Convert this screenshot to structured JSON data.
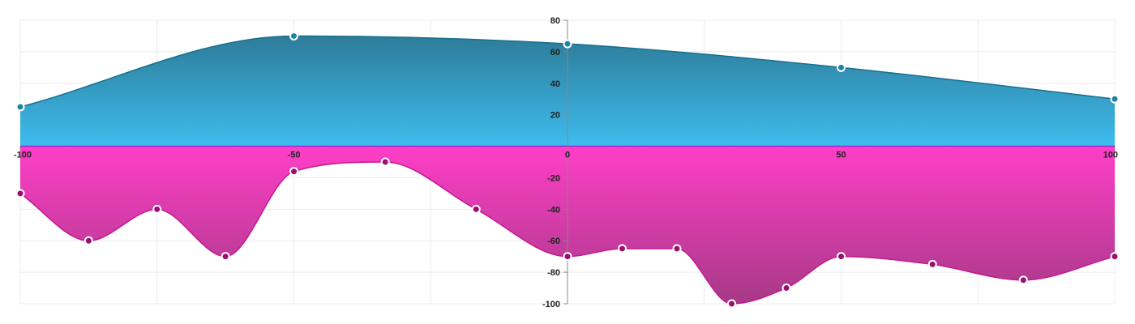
{
  "chart_data": {
    "type": "area",
    "xlim": [
      -100,
      100
    ],
    "ylim": [
      -100,
      80
    ],
    "x_ticks": [
      -100,
      -50,
      0,
      50,
      100
    ],
    "y_ticks": [
      80,
      60,
      40,
      20,
      -20,
      -40,
      -60,
      -80,
      -100
    ],
    "grid": true,
    "colors": {
      "positive_top": "#2d7c99",
      "positive_bottom": "#3ebcee",
      "positive_stroke": "#176f8c",
      "positive_marker": "#1a85a8",
      "negative_top": "#ff3ec8",
      "negative_bottom": "#a63a86",
      "negative_stroke": "#c4178f",
      "negative_marker": "#9b0e6e",
      "baseline": "#9b26d8"
    },
    "series": [
      {
        "points": [
          [
            -100,
            25
          ],
          [
            -50,
            70
          ],
          [
            0,
            65
          ],
          [
            50,
            50
          ],
          [
            100,
            30
          ]
        ]
      },
      {
        "points": [
          [
            -100,
            -30
          ],
          [
            -87.5,
            -60
          ],
          [
            -75,
            -40
          ],
          [
            -62.5,
            -70
          ],
          [
            -50,
            -16
          ],
          [
            -33.3,
            -10
          ],
          [
            -16.7,
            -40
          ],
          [
            0,
            -70
          ],
          [
            10,
            -65
          ],
          [
            20,
            -65
          ],
          [
            30,
            -100
          ],
          [
            40,
            -90
          ],
          [
            50,
            -70
          ],
          [
            66.7,
            -75
          ],
          [
            83.3,
            -85
          ],
          [
            100,
            -70
          ]
        ]
      }
    ]
  }
}
